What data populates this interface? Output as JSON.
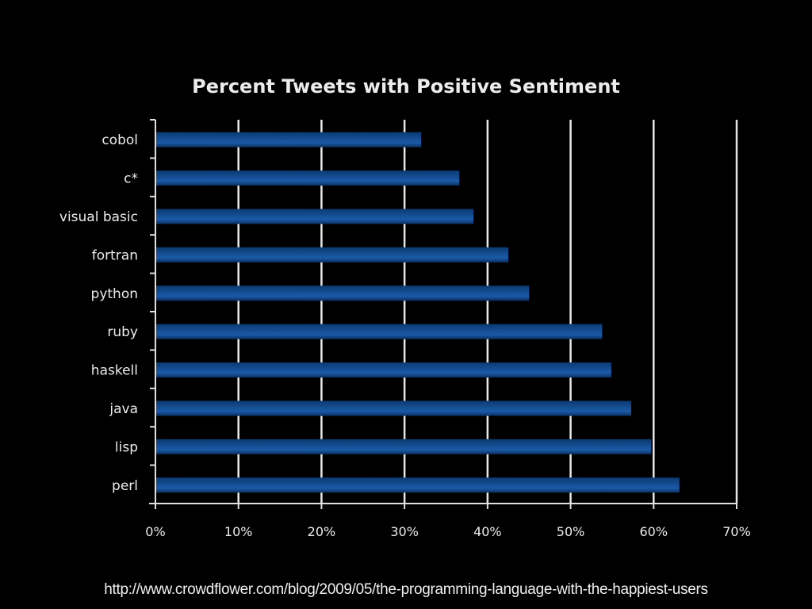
{
  "chart_data": {
    "type": "bar",
    "orientation": "horizontal",
    "title": "Percent Tweets with Positive Sentiment",
    "xlabel": "",
    "ylabel": "",
    "categories": [
      "cobol",
      "c*",
      "visual basic",
      "fortran",
      "python",
      "ruby",
      "haskell",
      "java",
      "lisp",
      "perl"
    ],
    "values": [
      32.0,
      36.6,
      38.3,
      42.5,
      45.0,
      53.8,
      54.9,
      57.3,
      59.7,
      63.1
    ],
    "value_unit": "%",
    "xlim": [
      0,
      70
    ],
    "xticks": [
      0,
      10,
      20,
      30,
      40,
      50,
      60,
      70
    ],
    "xtick_labels": [
      "0%",
      "10%",
      "20%",
      "30%",
      "40%",
      "50%",
      "60%",
      "70%"
    ],
    "grid": "vertical",
    "legend": "none",
    "colors": {
      "background": "#000000",
      "bar_top": "#0c3a72",
      "bar_mid": "#1b5aa7",
      "bar_edge": "#0a2f60",
      "grid": "#e8e8e8",
      "text": "#ececec"
    }
  },
  "source": {
    "url_text": "http://www.crowdflower.com/blog/2009/05/the-programming-language-with-the-happiest-users"
  }
}
